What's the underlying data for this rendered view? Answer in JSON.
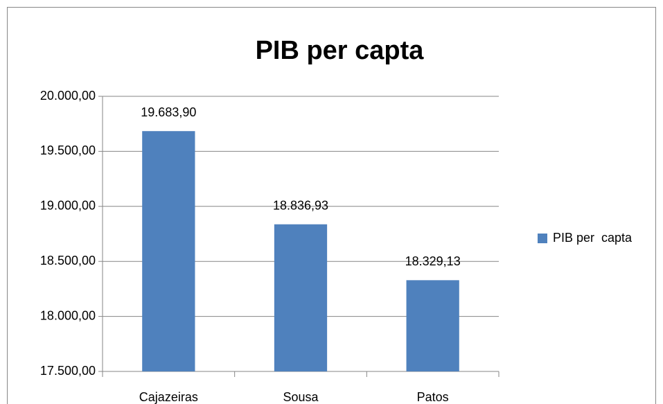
{
  "chart_data": {
    "type": "bar",
    "title": "PIB per capta",
    "categories": [
      "Cajazeiras",
      "Sousa",
      "Patos"
    ],
    "series": [
      {
        "name": "PIB per  capta",
        "color": "#4f81bd",
        "values": [
          19683.9,
          18836.93,
          18329.13
        ],
        "value_labels": [
          "19.683,90",
          "18.836,93",
          "18.329,13"
        ]
      }
    ],
    "ylim": [
      17500,
      20000
    ],
    "yticks": [
      {
        "value": 17500,
        "label": "17.500,00"
      },
      {
        "value": 18000,
        "label": "18.000,00"
      },
      {
        "value": 18500,
        "label": "18.500,00"
      },
      {
        "value": 19000,
        "label": "19.000,00"
      },
      {
        "value": 19500,
        "label": "19.500,00"
      },
      {
        "value": 20000,
        "label": "20.000,00"
      }
    ],
    "grid": true,
    "legend": "right"
  }
}
